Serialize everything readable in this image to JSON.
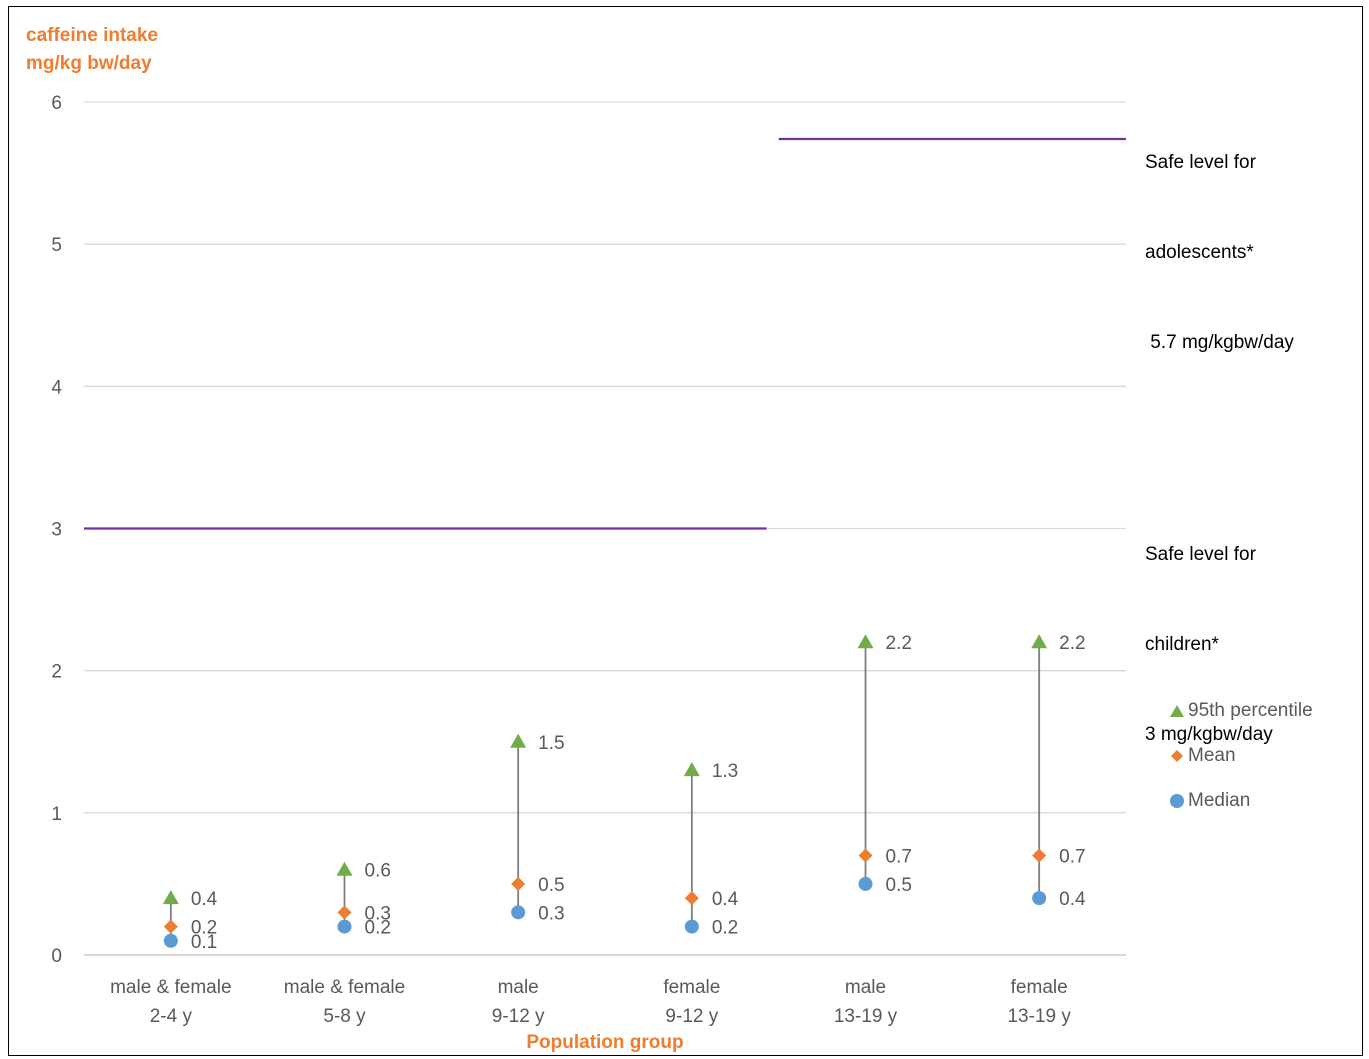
{
  "chart_data": {
    "type": "scatter",
    "ylabel_lines": [
      "caffeine intake",
      "mg/kg bw/day"
    ],
    "xlabel": "Population group",
    "ylim": [
      0,
      6
    ],
    "yticks": [
      "0",
      "1",
      "2",
      "3",
      "4",
      "5",
      "6"
    ],
    "grid": true,
    "legend_position": "right",
    "categories": [
      [
        "male & female",
        "2-4 y"
      ],
      [
        "male & female",
        "5-8 y"
      ],
      [
        "male",
        "9-12 y"
      ],
      [
        "female",
        "9-12 y"
      ],
      [
        "male",
        "13-19 y"
      ],
      [
        "female",
        "13-19 y"
      ]
    ],
    "series": [
      {
        "name": "95th percentile",
        "marker": "triangle",
        "color": "#70ad47",
        "values": [
          0.4,
          0.6,
          1.5,
          1.3,
          2.2,
          2.2
        ],
        "labels": [
          "0.4",
          "0.6",
          "1.5",
          "1.3",
          "2.2",
          "2.2"
        ]
      },
      {
        "name": "Mean",
        "marker": "diamond",
        "color": "#ed7d31",
        "values": [
          0.2,
          0.3,
          0.5,
          0.4,
          0.7,
          0.7
        ],
        "labels": [
          "0.2",
          "0.3",
          "0.5",
          "0.4",
          "0.7",
          "0.7"
        ]
      },
      {
        "name": "Median",
        "marker": "circle",
        "color": "#5b9bd5",
        "values": [
          0.1,
          0.2,
          0.3,
          0.2,
          0.5,
          0.4
        ],
        "labels": [
          "0.1",
          "0.2",
          "0.3",
          "0.2",
          "0.5",
          "0.4"
        ]
      }
    ],
    "reference_lines": [
      {
        "value": 3,
        "from_category": 0,
        "to_category": 3,
        "color": "#7030a0",
        "label_lines": [
          "Safe level for",
          "children*",
          "3 mg/kgbw/day"
        ]
      },
      {
        "value": 5.74,
        "from_category": 4,
        "to_category": 5,
        "color": "#7030a0",
        "label_lines": [
          "Safe level for",
          "adolescents*",
          " 5.7 mg/kgbw/day"
        ]
      }
    ]
  }
}
